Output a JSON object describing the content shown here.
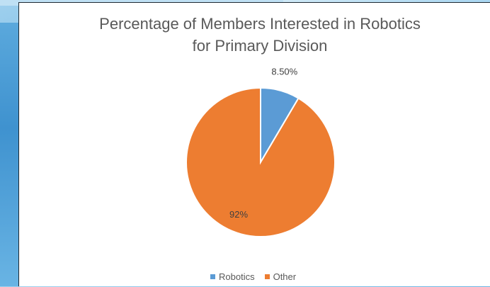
{
  "chart_data": {
    "type": "pie",
    "title_line1": "Percentage of Members Interested in Robotics",
    "title_line2": "for Primary Division",
    "labels": [
      "Robotics",
      "Other"
    ],
    "values": [
      8.5,
      91.5
    ],
    "data_labels": [
      "8.50%",
      "92%"
    ],
    "colors": [
      "#5b9bd5",
      "#ed7d31"
    ],
    "legend": "bottom",
    "start_angle": "12 o'clock, clockwise"
  }
}
